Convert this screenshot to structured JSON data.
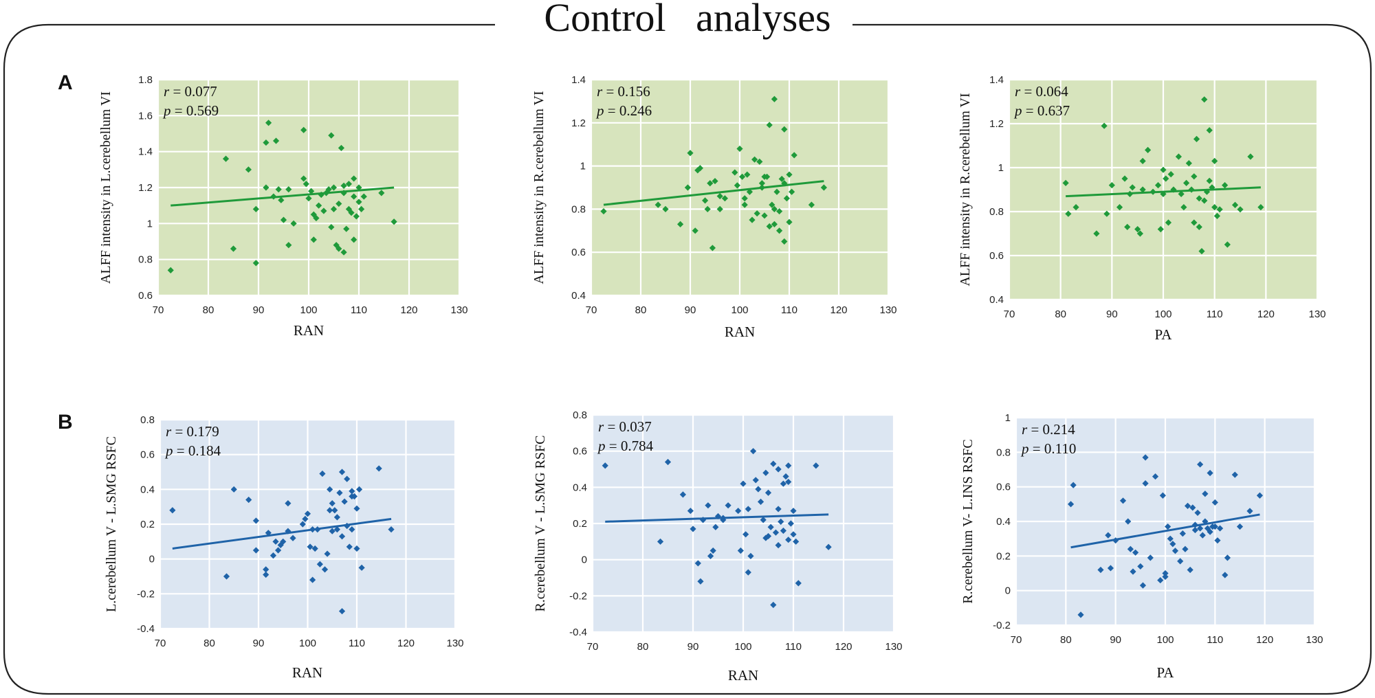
{
  "figure": {
    "title": "Control   analyses",
    "panel_labels": [
      "A",
      "B"
    ],
    "colors": {
      "green_bg": "#d7e4bd",
      "green_mark": "#1f9a3a",
      "blue_bg": "#dce6f2",
      "blue_mark": "#1f63a8",
      "frame": "#222222",
      "grid": "#ffffff"
    }
  },
  "chart_data": [
    {
      "type": "scatter",
      "panel": "A",
      "title": "",
      "xlabel": "RAN",
      "ylabel": "ALFF intensity in L.cerebellum VI",
      "xlim": [
        70,
        130
      ],
      "xticks": [
        "70",
        "80",
        "90",
        "100",
        "110",
        "120",
        "130"
      ],
      "ylim": [
        0.6,
        1.8
      ],
      "yticks": [
        "0.6",
        "0.8",
        "1",
        "1.2",
        "1.4",
        "1.6",
        "1.8"
      ],
      "r_label": "r",
      "r_value": "= 0.077",
      "p_label": "p",
      "p_value": "= 0.569",
      "trend": {
        "x": [
          72.5,
          117
        ],
        "y": [
          1.1,
          1.2
        ]
      },
      "x": [
        72.5,
        83.5,
        85,
        88,
        89.5,
        89.5,
        91.5,
        91.5,
        92,
        93,
        93.5,
        94,
        94.5,
        95,
        96,
        96,
        97,
        99,
        99,
        99.5,
        100,
        100.5,
        101,
        101,
        101.5,
        102,
        102.5,
        103,
        103.5,
        104,
        104.5,
        104.5,
        105,
        105,
        105.5,
        106,
        106,
        106.5,
        107,
        107,
        107,
        107.5,
        108,
        108,
        108.5,
        109,
        109,
        109,
        109.5,
        110,
        110,
        110.5,
        111,
        114.5,
        117
      ],
      "y": [
        0.74,
        1.36,
        0.86,
        1.3,
        1.08,
        0.78,
        1.45,
        1.2,
        1.56,
        1.15,
        1.46,
        1.19,
        1.13,
        1.02,
        1.19,
        0.88,
        1.0,
        1.52,
        1.25,
        1.22,
        1.14,
        1.18,
        1.05,
        0.91,
        1.03,
        1.1,
        1.16,
        1.07,
        1.17,
        1.19,
        1.49,
        0.98,
        1.2,
        1.08,
        0.88,
        1.11,
        0.86,
        1.42,
        0.84,
        1.17,
        1.21,
        0.97,
        1.08,
        1.22,
        1.06,
        1.15,
        1.25,
        0.91,
        1.04,
        1.12,
        1.2,
        1.08,
        1.15,
        1.17,
        1.01
      ]
    },
    {
      "type": "scatter",
      "panel": "A",
      "title": "",
      "xlabel": "RAN",
      "ylabel": "ALFF intensity in R.cerebellum VI",
      "xlim": [
        70,
        130
      ],
      "xticks": [
        "70",
        "80",
        "90",
        "100",
        "110",
        "120",
        "130"
      ],
      "ylim": [
        0.4,
        1.4
      ],
      "yticks": [
        "0.4",
        "0.6",
        "0.8",
        "1",
        "1.2",
        "1.4"
      ],
      "r_label": "r",
      "r_value": "= 0.156",
      "p_label": "p",
      "p_value": "= 0.246",
      "trend": {
        "x": [
          72.5,
          117
        ],
        "y": [
          0.82,
          0.93
        ]
      },
      "x": [
        72.5,
        83.5,
        85,
        88,
        89.5,
        90,
        91,
        91.5,
        92,
        93,
        93.5,
        94,
        94.5,
        95,
        96,
        96,
        97,
        99,
        99.5,
        100,
        100.5,
        101,
        101,
        101.5,
        102,
        102.5,
        103,
        103.5,
        104,
        104.5,
        104.5,
        105,
        105,
        105.5,
        106,
        106,
        106.5,
        107,
        107,
        107,
        107.5,
        108,
        108,
        108.5,
        109,
        109,
        109,
        109.5,
        110,
        110,
        110.5,
        111,
        114.5,
        117
      ],
      "y": [
        0.79,
        0.82,
        0.8,
        0.73,
        0.9,
        1.06,
        0.7,
        0.98,
        0.99,
        0.84,
        0.8,
        0.92,
        0.62,
        0.93,
        0.86,
        0.8,
        0.85,
        0.97,
        0.91,
        1.08,
        0.95,
        0.82,
        0.85,
        0.96,
        0.88,
        0.75,
        1.03,
        0.78,
        1.02,
        0.9,
        0.92,
        0.95,
        0.77,
        0.95,
        0.72,
        1.19,
        0.82,
        0.8,
        0.73,
        1.31,
        0.88,
        0.7,
        0.79,
        0.94,
        0.65,
        1.17,
        0.92,
        0.85,
        0.96,
        0.74,
        0.88,
        1.05,
        0.82,
        0.9
      ]
    },
    {
      "type": "scatter",
      "panel": "A",
      "title": "",
      "xlabel": "PA",
      "ylabel": "ALFF intensity in R.cerebellum VI",
      "xlim": [
        70,
        130
      ],
      "xticks": [
        "70",
        "80",
        "90",
        "100",
        "110",
        "120",
        "130"
      ],
      "ylim": [
        0.4,
        1.4
      ],
      "yticks": [
        "0.4",
        "0.6",
        "0.8",
        "1",
        "1.2",
        "1.4"
      ],
      "r_label": "r",
      "r_value": "= 0.064",
      "p_label": "p",
      "p_value": "= 0.637",
      "trend": {
        "x": [
          81,
          119
        ],
        "y": [
          0.87,
          0.91
        ]
      },
      "x": [
        81,
        81.5,
        83,
        87,
        88.5,
        89,
        90,
        91.5,
        92.5,
        93,
        93.5,
        94,
        95,
        95.5,
        96,
        96,
        97,
        98,
        99,
        99.5,
        100,
        100,
        100.5,
        101,
        101.5,
        102,
        103,
        103.5,
        104,
        104.5,
        105,
        105.5,
        106,
        106,
        106.5,
        107,
        107,
        107.5,
        108,
        108,
        108.5,
        109,
        109,
        109.5,
        110,
        110,
        110.5,
        111,
        112,
        112.5,
        114,
        115,
        117,
        119
      ],
      "y": [
        0.93,
        0.79,
        0.82,
        0.7,
        1.19,
        0.79,
        0.92,
        0.82,
        0.95,
        0.73,
        0.88,
        0.91,
        0.72,
        0.7,
        1.03,
        0.9,
        1.08,
        0.89,
        0.92,
        0.72,
        0.99,
        0.88,
        0.95,
        0.75,
        0.97,
        0.9,
        1.05,
        0.88,
        0.82,
        0.93,
        1.02,
        0.9,
        0.96,
        0.75,
        1.13,
        0.73,
        0.86,
        0.62,
        0.85,
        1.31,
        0.89,
        0.94,
        1.17,
        0.91,
        0.82,
        1.03,
        0.78,
        0.81,
        0.92,
        0.65,
        0.83,
        0.81,
        1.05,
        0.82
      ]
    },
    {
      "type": "scatter",
      "panel": "B",
      "title": "",
      "xlabel": "RAN",
      "ylabel": "L.cerebellum V - L.SMG RSFC",
      "xlim": [
        70,
        130
      ],
      "xticks": [
        "70",
        "80",
        "90",
        "100",
        "110",
        "120",
        "130"
      ],
      "ylim": [
        -0.4,
        0.8
      ],
      "yticks": [
        "-0.4",
        "-0.2",
        "0",
        "0.2",
        "0.4",
        "0.6",
        "0.8"
      ],
      "r_label": "r",
      "r_value": "= 0.179",
      "p_label": "p",
      "p_value": "= 0.184",
      "trend": {
        "x": [
          72.5,
          117
        ],
        "y": [
          0.06,
          0.23
        ]
      },
      "x": [
        72.5,
        83.5,
        85,
        88,
        89.5,
        89.5,
        91.5,
        91.5,
        92,
        93,
        93.5,
        94,
        94.5,
        95,
        96,
        96,
        97,
        99,
        99.5,
        100,
        100.5,
        101,
        101,
        101.5,
        102,
        102.5,
        103,
        103.5,
        104,
        104.5,
        104.5,
        105,
        105,
        105.5,
        106,
        106,
        106.5,
        107,
        107,
        107,
        107.5,
        108,
        108,
        108.5,
        109,
        109,
        109,
        109.5,
        110,
        110,
        110.5,
        111,
        114.5,
        117
      ],
      "y": [
        0.28,
        -0.1,
        0.4,
        0.34,
        0.22,
        0.05,
        -0.06,
        -0.09,
        0.15,
        0.02,
        0.1,
        0.05,
        0.08,
        0.1,
        0.32,
        0.16,
        0.12,
        0.2,
        0.23,
        0.26,
        0.07,
        0.17,
        -0.12,
        0.06,
        0.17,
        -0.03,
        0.49,
        -0.06,
        0.03,
        0.28,
        0.4,
        0.16,
        0.32,
        0.28,
        0.17,
        0.24,
        0.38,
        -0.3,
        0.13,
        0.5,
        0.33,
        0.19,
        0.46,
        0.07,
        0.36,
        0.39,
        0.17,
        0.36,
        0.06,
        0.29,
        0.4,
        -0.05,
        0.52,
        0.17
      ]
    },
    {
      "type": "scatter",
      "panel": "B",
      "title": "",
      "xlabel": "RAN",
      "ylabel": "R.cerebellum V - L.SMG RSFC",
      "xlim": [
        70,
        130
      ],
      "xticks": [
        "70",
        "80",
        "90",
        "100",
        "110",
        "120",
        "130"
      ],
      "ylim": [
        -0.4,
        0.8
      ],
      "yticks": [
        "-0.4",
        "-0.2",
        "0",
        "0.2",
        "0.4",
        "0.6",
        "0.8"
      ],
      "r_label": "r",
      "r_value": "= 0.037",
      "p_label": "p",
      "p_value": "= 0.784",
      "trend": {
        "x": [
          72.5,
          117
        ],
        "y": [
          0.21,
          0.25
        ]
      },
      "x": [
        72.5,
        83.5,
        85,
        88,
        89.5,
        90,
        91,
        91.5,
        92,
        93,
        93.5,
        94,
        94.5,
        95,
        96,
        96,
        97,
        99,
        99.5,
        100,
        100.5,
        101,
        101,
        101.5,
        102,
        102.5,
        103,
        103.5,
        104,
        104.5,
        104.5,
        105,
        105,
        105.5,
        106,
        106,
        106.5,
        107,
        107,
        107,
        107.5,
        108,
        108,
        108.5,
        109,
        109,
        109,
        109.5,
        110,
        110,
        110.5,
        111,
        114.5,
        117
      ],
      "y": [
        0.52,
        0.1,
        0.54,
        0.36,
        0.27,
        0.17,
        -0.02,
        -0.12,
        0.22,
        0.3,
        0.02,
        0.05,
        0.18,
        0.24,
        0.22,
        0.23,
        0.3,
        0.27,
        0.05,
        0.42,
        0.14,
        -0.07,
        0.28,
        0.02,
        0.6,
        0.44,
        0.39,
        0.32,
        0.22,
        0.12,
        0.48,
        0.13,
        0.37,
        0.18,
        -0.25,
        0.53,
        0.15,
        0.28,
        0.5,
        0.08,
        0.21,
        0.42,
        0.16,
        0.46,
        0.11,
        0.52,
        0.43,
        0.2,
        0.14,
        0.27,
        0.1,
        -0.13,
        0.52,
        0.07
      ]
    },
    {
      "type": "scatter",
      "panel": "B",
      "title": "",
      "xlabel": "PA",
      "ylabel": "R.cerebellum V- L.INS RSFC",
      "xlim": [
        70,
        130
      ],
      "xticks": [
        "70",
        "80",
        "90",
        "100",
        "110",
        "120",
        "130"
      ],
      "ylim": [
        -0.2,
        1.0
      ],
      "yticks": [
        "-0.2",
        "0",
        "0.2",
        "0.4",
        "0.6",
        "0.8",
        "1"
      ],
      "r_label": "r",
      "r_value": "= 0.214",
      "p_label": "p",
      "p_value": "= 0.110",
      "trend": {
        "x": [
          81,
          119
        ],
        "y": [
          0.25,
          0.44
        ]
      },
      "x": [
        81,
        81.5,
        83,
        87,
        88.5,
        89,
        90,
        91.5,
        92.5,
        93,
        93.5,
        94,
        95,
        95.5,
        96,
        96,
        97,
        98,
        99,
        99.5,
        100,
        100,
        100.5,
        101,
        101.5,
        102,
        103,
        103.5,
        104,
        104.5,
        105,
        105.5,
        106,
        106,
        106.5,
        107,
        107,
        107.5,
        108,
        108,
        108.5,
        109,
        109,
        109.5,
        110,
        110,
        110.5,
        111,
        112,
        112.5,
        114,
        115,
        117,
        119
      ],
      "y": [
        0.5,
        0.61,
        -0.14,
        0.12,
        0.32,
        0.13,
        0.29,
        0.52,
        0.4,
        0.24,
        0.11,
        0.22,
        0.14,
        0.03,
        0.77,
        0.62,
        0.19,
        0.66,
        0.06,
        0.55,
        0.1,
        0.08,
        0.37,
        0.3,
        0.27,
        0.23,
        0.17,
        0.33,
        0.24,
        0.49,
        0.12,
        0.48,
        0.38,
        0.35,
        0.45,
        0.73,
        0.36,
        0.32,
        0.56,
        0.4,
        0.36,
        0.34,
        0.68,
        0.37,
        0.51,
        0.37,
        0.29,
        0.36,
        0.09,
        0.19,
        0.67,
        0.37,
        0.46,
        0.55
      ]
    }
  ]
}
